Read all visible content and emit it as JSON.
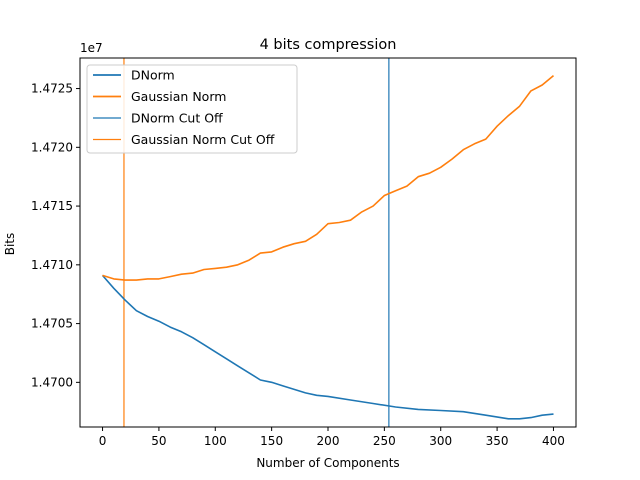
{
  "chart_data": {
    "type": "line",
    "title": "4 bits compression",
    "xlabel": "Number of Components",
    "ylabel": "Bits",
    "y_offset_label": "1e7",
    "xlim": [
      -20,
      420
    ],
    "ylim": [
      14696200,
      14727600
    ],
    "x_ticks": [
      0,
      50,
      100,
      150,
      200,
      250,
      300,
      350,
      400
    ],
    "y_ticks": [
      14700000,
      14705000,
      14710000,
      14715000,
      14720000,
      14725000
    ],
    "y_tick_labels": [
      "1.4700",
      "1.4705",
      "1.4710",
      "1.4715",
      "1.4720",
      "1.4725"
    ],
    "grid": false,
    "legend_position": "upper-left",
    "series": [
      {
        "name": "DNorm",
        "color": "#1f77b4",
        "x": [
          0,
          10,
          20,
          30,
          40,
          50,
          60,
          70,
          80,
          90,
          100,
          110,
          120,
          130,
          140,
          150,
          160,
          170,
          180,
          190,
          200,
          220,
          240,
          260,
          280,
          300,
          320,
          340,
          360,
          370,
          380,
          390,
          400
        ],
        "y": [
          14709100,
          14708000,
          14707000,
          14706100,
          14705600,
          14705200,
          14704700,
          14704300,
          14703800,
          14703200,
          14702600,
          14702000,
          14701400,
          14700800,
          14700200,
          14700000,
          14699700,
          14699400,
          14699100,
          14698900,
          14698800,
          14698500,
          14698200,
          14697900,
          14697700,
          14697600,
          14697500,
          14697200,
          14696900,
          14696900,
          14697000,
          14697200,
          14697300
        ]
      },
      {
        "name": "Gaussian Norm",
        "color": "#ff7f0e",
        "x": [
          0,
          10,
          20,
          30,
          40,
          50,
          60,
          70,
          80,
          90,
          100,
          110,
          120,
          130,
          140,
          150,
          160,
          170,
          180,
          190,
          200,
          210,
          220,
          230,
          240,
          250,
          260,
          270,
          280,
          290,
          300,
          310,
          320,
          330,
          340,
          350,
          360,
          370,
          380,
          390,
          400
        ],
        "y": [
          14709100,
          14708800,
          14708700,
          14708700,
          14708800,
          14708800,
          14709000,
          14709200,
          14709300,
          14709600,
          14709700,
          14709800,
          14710000,
          14710400,
          14711000,
          14711100,
          14711500,
          14711800,
          14712000,
          14712600,
          14713500,
          14713600,
          14713800,
          14714500,
          14715000,
          14715900,
          14716300,
          14716700,
          14717500,
          14717800,
          14718300,
          14719000,
          14719800,
          14720300,
          14720700,
          14721800,
          14722700,
          14723500,
          14724800,
          14725300,
          14726100
        ]
      }
    ],
    "cutoffs": [
      {
        "name": "DNorm Cut Off",
        "color": "#1f77b4",
        "x": 254
      },
      {
        "name": "Gaussian Norm Cut Off",
        "color": "#ff7f0e",
        "x": 19
      }
    ]
  }
}
